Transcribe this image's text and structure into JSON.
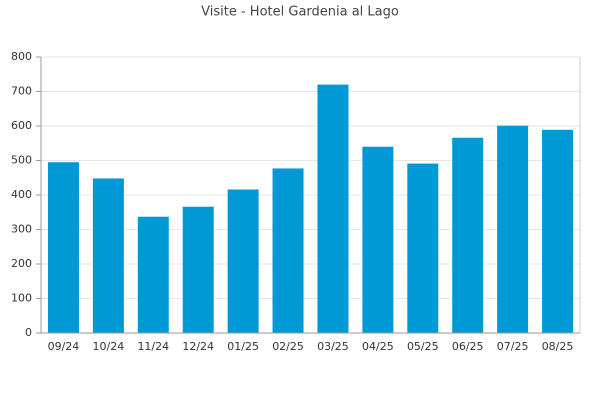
{
  "chart_data": {
    "type": "bar",
    "title": "Visite - Hotel Gardenia al Lago",
    "categories": [
      "09/24",
      "10/24",
      "11/24",
      "12/24",
      "01/25",
      "02/25",
      "03/25",
      "04/25",
      "05/25",
      "06/25",
      "07/25",
      "08/25"
    ],
    "values": [
      495,
      448,
      337,
      366,
      416,
      477,
      720,
      540,
      491,
      566,
      601,
      589
    ],
    "color": "#0099d6",
    "ylim": [
      0,
      800
    ],
    "yticks": [
      0,
      100,
      200,
      300,
      400,
      500,
      600,
      700,
      800
    ],
    "grid": true
  }
}
